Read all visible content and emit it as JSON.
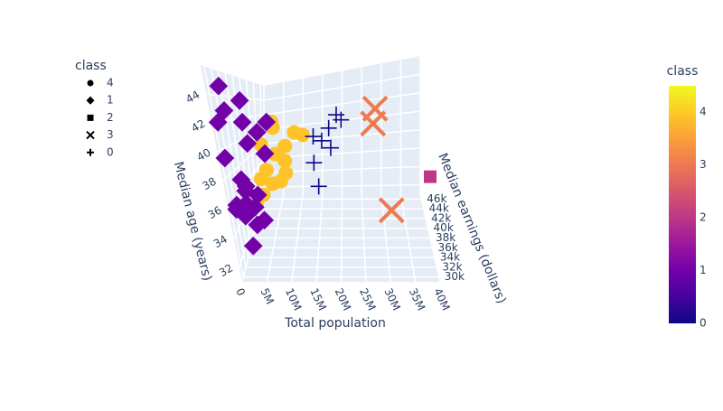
{
  "chart_data": {
    "type": "scatter3d",
    "x_label": "Total population",
    "y_label": "Median earnings (dollars)",
    "z_label": "Median age (years)",
    "xlim": [
      0,
      40000000
    ],
    "ylim": [
      29000,
      47000
    ],
    "zlim": [
      31,
      46
    ],
    "xticks": [
      {
        "value": 0,
        "label": "0"
      },
      {
        "value": 5000000,
        "label": "5M"
      },
      {
        "value": 10000000,
        "label": "10M"
      },
      {
        "value": 15000000,
        "label": "15M"
      },
      {
        "value": 20000000,
        "label": "20M"
      },
      {
        "value": 25000000,
        "label": "25M"
      },
      {
        "value": 30000000,
        "label": "30M"
      },
      {
        "value": 35000000,
        "label": "35M"
      },
      {
        "value": 40000000,
        "label": "40M"
      }
    ],
    "yticks": [
      {
        "value": 30000,
        "label": "30k"
      },
      {
        "value": 32000,
        "label": "32k"
      },
      {
        "value": 34000,
        "label": "34k"
      },
      {
        "value": 36000,
        "label": "36k"
      },
      {
        "value": 38000,
        "label": "38k"
      },
      {
        "value": 40000,
        "label": "40k"
      },
      {
        "value": 42000,
        "label": "42k"
      },
      {
        "value": 44000,
        "label": "44k"
      },
      {
        "value": 46000,
        "label": "46k"
      }
    ],
    "zticks": [
      32,
      34,
      36,
      38,
      40,
      42,
      44
    ],
    "legend_title": "class",
    "series": [
      {
        "name": "4",
        "symbol": "circle",
        "color": "#fdc328",
        "x": [
          6800000,
          7200000,
          9900000,
          8500000,
          10100000,
          6600000,
          11700000,
          5700000,
          12800000,
          9000000,
          6100000,
          7500000,
          4900000,
          10500000,
          8000000,
          5300000
        ],
        "y": [
          38000,
          37500,
          36000,
          35000,
          34500,
          33500,
          37000,
          32500,
          39000,
          34000,
          31500,
          36500,
          30500,
          33000,
          32000,
          35500
        ],
        "z": [
          41.5,
          41.0,
          39.5,
          39.0,
          38.5,
          38.0,
          40.5,
          37.5,
          40.0,
          37.0,
          36.5,
          38.8,
          36.0,
          37.8,
          37.2,
          39.8
        ]
      },
      {
        "name": "1",
        "symbol": "diamond",
        "color": "#7201a8",
        "x": [
          1300000,
          3600000,
          1000000,
          5800000,
          600000,
          3000000,
          4600000,
          900000,
          2900000,
          4300000,
          1800000,
          3200000,
          2100000,
          5000000,
          1500000,
          2700000,
          3900000,
          1100000,
          2400000,
          6100000,
          4800000,
          3100000
        ],
        "y": [
          31000,
          33000,
          32000,
          38000,
          30000,
          34000,
          36000,
          29500,
          35000,
          39000,
          32500,
          30500,
          33500,
          31500,
          29500,
          31000,
          32000,
          30000,
          30500,
          30000,
          29500,
          30000
        ],
        "z": [
          44.6,
          43.5,
          42.8,
          41.5,
          42.0,
          41.8,
          40.8,
          39.5,
          40.0,
          38.5,
          37.5,
          37.0,
          36.8,
          36.5,
          36.2,
          36.0,
          35.5,
          35.8,
          35.2,
          35.0,
          34.8,
          33.2
        ]
      },
      {
        "name": "2",
        "symbol": "square",
        "color": "#bd3786",
        "x": [
          39500000
        ],
        "y": [
          36000
        ],
        "z": [
          36.5
        ]
      },
      {
        "name": "3",
        "symbol": "x",
        "color": "#ef7a4d",
        "x": [
          28500000,
          28000000,
          31000000
        ],
        "y": [
          37000,
          35000,
          33000
        ],
        "z": [
          42.0,
          41.0,
          34.8
        ]
      },
      {
        "name": "0",
        "symbol": "cross",
        "color": "#0d0887",
        "x": [
          20000000,
          21000000,
          17000000,
          15000000,
          19000000,
          15500000,
          16500000,
          18000000
        ],
        "y": [
          40000,
          40000,
          38000,
          39000,
          37000,
          36000,
          34000,
          41000
        ],
        "z": [
          41.5,
          41.0,
          39.5,
          39.8,
          39.0,
          38.0,
          36.5,
          40.2
        ]
      }
    ],
    "colorbar": {
      "title": "class",
      "range": [
        0,
        4.5
      ],
      "ticks": [
        0,
        1,
        2,
        3,
        4
      ],
      "colorscale": [
        "#0d0887",
        "#46039f",
        "#7201a8",
        "#9c179e",
        "#bd3786",
        "#d8576b",
        "#ed7953",
        "#fb9f3a",
        "#fdca26",
        "#f0f921"
      ]
    }
  }
}
